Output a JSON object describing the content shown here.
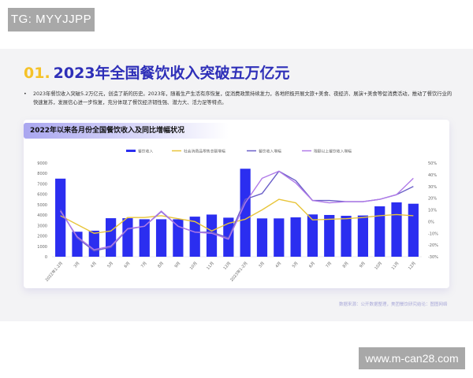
{
  "watermark_top": "TG: MYYJJPP",
  "watermark_bottom": "www.m-can28.com",
  "section": {
    "number": "01.",
    "title": "2023年全国餐饮收入突破五万亿元"
  },
  "bullet": "2023年餐饮收入突破5.2万亿元，创造了新的历史。2023年，随着生产生活有序恢复，促消费政策持续发力，各地积极开展文旅+美食、夜经济、展演+美食等促消费活动，推动了餐饮行业的快速复苏，发展信心进一步恢复，充分体现了餐饮经济韧性强、潜力大、活力足等特点。",
  "source": "数据来源：公开数据整理，美团餐饮研究结论：图图网络",
  "chart_data": {
    "type": "bar+line",
    "title": "2022年以来各月份全国餐饮收入及同比增幅状况",
    "categories": [
      "2022年1-2月",
      "3月",
      "4月",
      "5月",
      "6月",
      "7月",
      "8月",
      "9月",
      "10月",
      "11月",
      "12月",
      "2023年1-2月",
      "3月",
      "4月",
      "5月",
      "6月",
      "7月",
      "8月",
      "9月",
      "10月",
      "11月",
      "12月"
    ],
    "left_axis": {
      "range": [
        0,
        9000
      ],
      "ticks": [
        "0",
        "1000",
        "2000",
        "3000",
        "4000",
        "5000",
        "6000",
        "7000",
        "8000",
        "9000"
      ]
    },
    "right_axis": {
      "range": [
        -30,
        50
      ],
      "ticks": [
        "-30%",
        "-20%",
        "-10%",
        "0%",
        "10%",
        "20%",
        "30%",
        "40%",
        "50%"
      ]
    },
    "legend_position": "top",
    "grid": false,
    "series": [
      {
        "name": "餐饮收入",
        "type": "bar",
        "axis": "left",
        "color": "#2b2ef0",
        "values": [
          7500,
          2400,
          2500,
          3700,
          3700,
          3600,
          3600,
          3600,
          3850,
          4050,
          3750,
          8450,
          3680,
          3680,
          3780,
          4060,
          4010,
          3930,
          3960,
          4840,
          5220,
          5090
        ]
      },
      {
        "name": "社会消费品零售总额增幅",
        "type": "line",
        "axis": "right",
        "color": "#e8c53a",
        "values": [
          5,
          -2.5,
          -10,
          -8,
          3.5,
          3.5,
          5,
          2.5,
          0,
          -8,
          -1.5,
          2,
          10,
          19,
          16,
          1.5,
          2,
          2.5,
          3.5,
          5,
          6,
          5
        ]
      },
      {
        "name": "餐饮收入增幅",
        "type": "line",
        "axis": "right",
        "color": "#6a5fc8",
        "values": [
          10,
          -14,
          -25,
          -22,
          -6.5,
          -4,
          8.5,
          -4,
          -9,
          -9,
          -14,
          19,
          24,
          43,
          35,
          18,
          18,
          17,
          17,
          19,
          23,
          30
        ]
      },
      {
        "name": "限额以上餐饮收入增幅",
        "type": "line",
        "axis": "right",
        "color": "#b07ae8",
        "values": [
          9,
          -13,
          -24,
          -21,
          -6,
          -4,
          9,
          -4,
          -9,
          -10,
          -15,
          16,
          37,
          43,
          33,
          18,
          16,
          17,
          17,
          19,
          23,
          37
        ]
      }
    ]
  }
}
